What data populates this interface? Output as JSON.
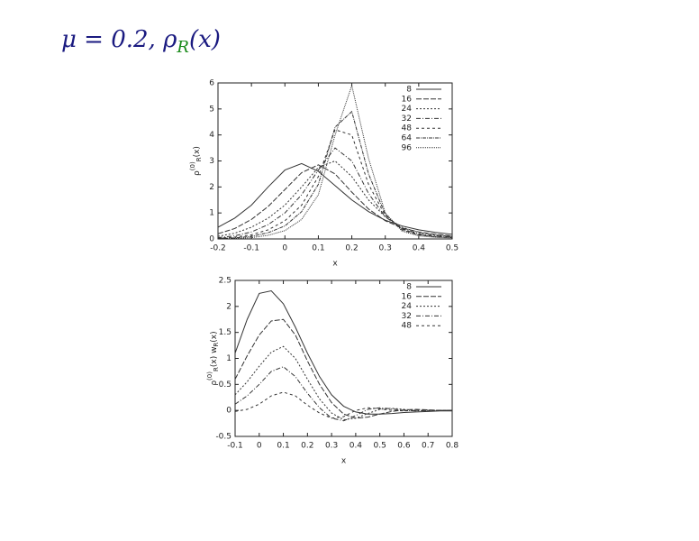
{
  "title": [
    "μ = 0.2, ρ",
    "R",
    "(x)"
  ],
  "chart_data": [
    {
      "type": "line",
      "xlabel": "x",
      "ylabel": [
        "ρ",
        "(0)",
        "R",
        "(x)"
      ],
      "x": [
        -0.2,
        -0.15,
        -0.1,
        -0.05,
        0,
        0.05,
        0.1,
        0.15,
        0.2,
        0.25,
        0.3,
        0.35,
        0.4,
        0.45,
        0.5
      ],
      "xlim": [
        -0.2,
        0.5
      ],
      "xticks": [
        -0.2,
        -0.1,
        0,
        0.1,
        0.2,
        0.3,
        0.4,
        0.5
      ],
      "ylim": [
        0,
        6
      ],
      "yticks": [
        0,
        1,
        2,
        3,
        4,
        5,
        6
      ],
      "legend": "top-right",
      "series": [
        {
          "name": "8",
          "color": "#333333",
          "dash": "none",
          "values": [
            0.45,
            0.8,
            1.3,
            2.0,
            2.65,
            2.9,
            2.6,
            2.05,
            1.5,
            1.05,
            0.72,
            0.5,
            0.35,
            0.25,
            0.18
          ]
        },
        {
          "name": "16",
          "color": "#333333",
          "dash": "6 2",
          "values": [
            0.2,
            0.4,
            0.75,
            1.25,
            1.9,
            2.55,
            2.85,
            2.5,
            1.8,
            1.15,
            0.7,
            0.42,
            0.27,
            0.18,
            0.12
          ]
        },
        {
          "name": "24",
          "color": "#333333",
          "dash": "2 2",
          "values": [
            0.1,
            0.22,
            0.45,
            0.8,
            1.3,
            2.0,
            2.75,
            3.0,
            2.4,
            1.5,
            0.85,
            0.45,
            0.25,
            0.15,
            0.1
          ]
        },
        {
          "name": "32",
          "color": "#333333",
          "dash": "5 2 1 2",
          "values": [
            0.05,
            0.12,
            0.27,
            0.55,
            1.0,
            1.7,
            2.65,
            3.5,
            3.0,
            1.75,
            0.85,
            0.4,
            0.2,
            0.12,
            0.08
          ]
        },
        {
          "name": "48",
          "color": "#333333",
          "dash": "3 3",
          "values": [
            0.03,
            0.07,
            0.16,
            0.35,
            0.7,
            1.3,
            2.4,
            4.2,
            4.0,
            2.1,
            0.9,
            0.38,
            0.17,
            0.1,
            0.06
          ]
        },
        {
          "name": "64",
          "color": "#333333",
          "dash": "4 1 1 1",
          "values": [
            0.02,
            0.04,
            0.1,
            0.24,
            0.5,
            1.05,
            2.1,
            4.3,
            4.9,
            2.5,
            0.95,
            0.35,
            0.15,
            0.08,
            0.05
          ]
        },
        {
          "name": "96",
          "color": "#333333",
          "dash": "1 1",
          "values": [
            0.01,
            0.02,
            0.05,
            0.14,
            0.32,
            0.75,
            1.7,
            4.0,
            5.9,
            3.1,
            1.0,
            0.3,
            0.12,
            0.06,
            0.04
          ]
        }
      ]
    },
    {
      "type": "line",
      "xlabel": "x",
      "ylabel": [
        "ρ",
        "(0)",
        "R",
        "(x) w",
        "R",
        "(x)"
      ],
      "x": [
        -0.1,
        -0.05,
        0,
        0.05,
        0.1,
        0.15,
        0.2,
        0.25,
        0.3,
        0.35,
        0.4,
        0.45,
        0.5,
        0.55,
        0.6,
        0.65,
        0.7,
        0.75,
        0.8
      ],
      "xlim": [
        -0.1,
        0.8
      ],
      "xticks": [
        -0.1,
        0,
        0.1,
        0.2,
        0.3,
        0.4,
        0.5,
        0.6,
        0.7,
        0.8
      ],
      "ylim": [
        -0.5,
        2.5
      ],
      "yticks": [
        -0.5,
        0,
        0.5,
        1,
        1.5,
        2,
        2.5
      ],
      "legend": "top-right",
      "series": [
        {
          "name": "8",
          "color": "#333333",
          "dash": "none",
          "values": [
            1.1,
            1.75,
            2.25,
            2.3,
            2.05,
            1.6,
            1.1,
            0.65,
            0.3,
            0.08,
            -0.03,
            -0.07,
            -0.07,
            -0.06,
            -0.04,
            -0.03,
            -0.02,
            -0.01,
            -0.01
          ]
        },
        {
          "name": "16",
          "color": "#333333",
          "dash": "6 2",
          "values": [
            0.6,
            1.05,
            1.45,
            1.72,
            1.75,
            1.45,
            0.95,
            0.5,
            0.15,
            -0.07,
            -0.15,
            -0.13,
            -0.07,
            -0.02,
            0.01,
            0.02,
            0.01,
            0,
            0
          ]
        },
        {
          "name": "24",
          "color": "#333333",
          "dash": "2 2",
          "values": [
            0.3,
            0.55,
            0.85,
            1.12,
            1.23,
            1.0,
            0.6,
            0.22,
            -0.05,
            -0.18,
            -0.15,
            -0.06,
            0.02,
            0.04,
            0.02,
            0,
            -0.01,
            0,
            0
          ]
        },
        {
          "name": "32",
          "color": "#333333",
          "dash": "5 2 1 2",
          "values": [
            0.12,
            0.28,
            0.5,
            0.75,
            0.84,
            0.65,
            0.33,
            0.05,
            -0.15,
            -0.2,
            -0.1,
            0.02,
            0.05,
            0.03,
            0,
            -0.01,
            0,
            0,
            0
          ]
        },
        {
          "name": "48",
          "color": "#333333",
          "dash": "3 3",
          "values": [
            -0.02,
            0.02,
            0.12,
            0.28,
            0.35,
            0.28,
            0.1,
            -0.05,
            -0.15,
            -0.12,
            0,
            0.05,
            0.03,
            0,
            -0.01,
            0,
            0,
            0,
            0
          ]
        }
      ]
    }
  ]
}
